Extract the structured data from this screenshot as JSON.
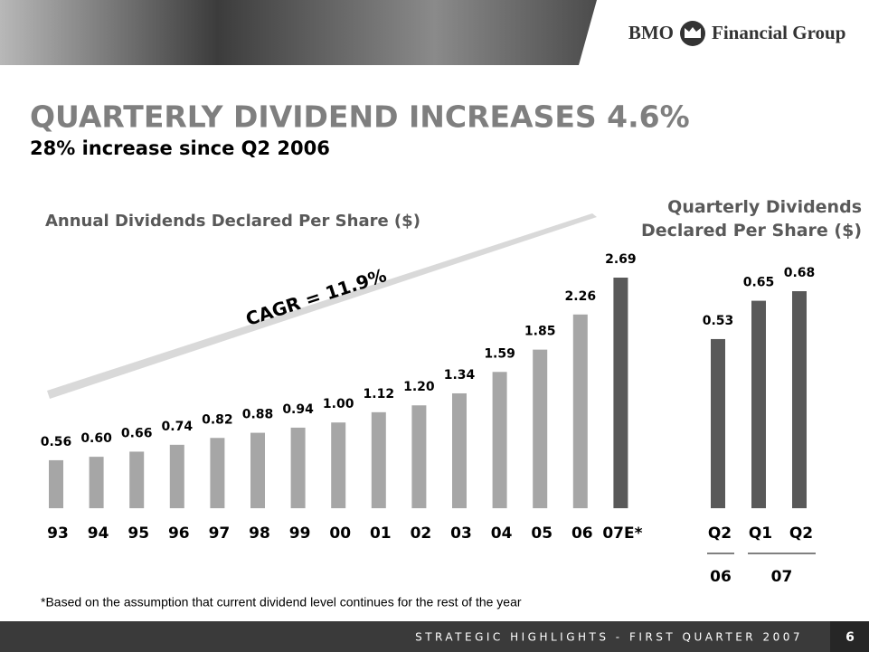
{
  "header": {
    "logo_left": "BMO",
    "logo_right": "Financial Group"
  },
  "title": "QUARTERLY DIVIDEND INCREASES 4.6%",
  "subtitle": "28% increase since Q2 2006",
  "chart_data": [
    {
      "type": "bar",
      "title": "Annual Dividends Declared Per Share ($)",
      "categories": [
        "93",
        "94",
        "95",
        "96",
        "97",
        "98",
        "99",
        "00",
        "01",
        "02",
        "03",
        "04",
        "05",
        "06",
        "07E*"
      ],
      "values": [
        0.56,
        0.6,
        0.66,
        0.74,
        0.82,
        0.88,
        0.94,
        1.0,
        1.12,
        1.2,
        1.34,
        1.59,
        1.85,
        2.26,
        2.69
      ],
      "value_labels": [
        "0.56",
        "0.60",
        "0.66",
        "0.74",
        "0.82",
        "0.88",
        "0.94",
        "1.00",
        "1.12",
        "1.20",
        "1.34",
        "1.59",
        "1.85",
        "2.26",
        "2.69"
      ],
      "colors": [
        "#a6a6a6",
        "#a6a6a6",
        "#a6a6a6",
        "#a6a6a6",
        "#a6a6a6",
        "#a6a6a6",
        "#a6a6a6",
        "#a6a6a6",
        "#a6a6a6",
        "#a6a6a6",
        "#a6a6a6",
        "#a6a6a6",
        "#a6a6a6",
        "#a6a6a6",
        "#595959"
      ],
      "annotation": "CAGR = 11.9%"
    },
    {
      "type": "bar",
      "title": "Quarterly Dividends Declared Per Share ($)",
      "categories": [
        "Q2",
        "Q1",
        "Q2"
      ],
      "category_groups": [
        "06",
        "07"
      ],
      "values": [
        0.53,
        0.65,
        0.68
      ],
      "value_labels": [
        "0.53",
        "0.65",
        "0.68"
      ],
      "color": "#595959"
    }
  ],
  "footnote": "*Based on the assumption that current dividend level continues for the rest of the year",
  "footer": {
    "text": "STRATEGIC HIGHLIGHTS - FIRST QUARTER 2007",
    "page": "6"
  }
}
